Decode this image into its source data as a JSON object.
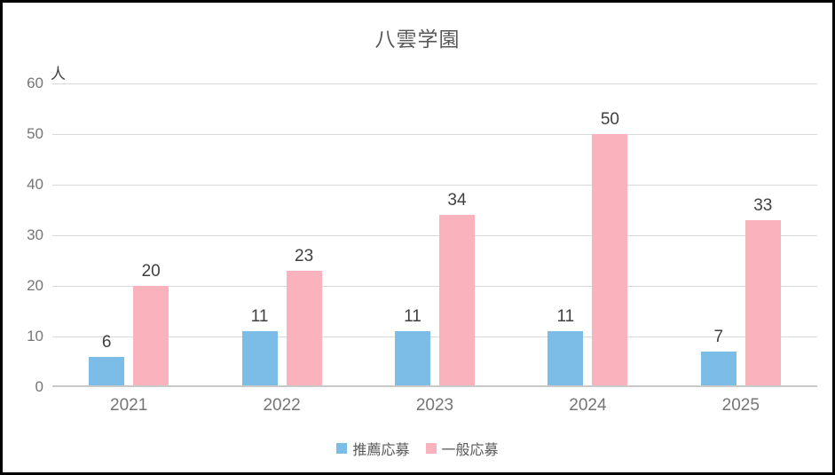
{
  "window": {
    "background": "#ffffff",
    "border_color": "#000000"
  },
  "chart_data": {
    "type": "bar",
    "title": "八雲学園",
    "unit_label": "人",
    "categories": [
      "2021",
      "2022",
      "2023",
      "2024",
      "2025"
    ],
    "series": [
      {
        "name": "推薦応募",
        "color": "#7cbde8",
        "values": [
          6,
          11,
          11,
          11,
          7
        ]
      },
      {
        "name": "一般応募",
        "color": "#fab2bd",
        "values": [
          20,
          23,
          34,
          50,
          33
        ]
      }
    ],
    "ylim": [
      0,
      60
    ],
    "y_ticks": [
      0,
      10,
      20,
      30,
      40,
      50,
      60
    ],
    "grid": "horizontal",
    "legend_position": "bottom",
    "data_labels": true
  },
  "colors": {
    "gridline": "#d9d9d9",
    "axis_line": "#c9c9c9",
    "y_tick_label": "#767676",
    "x_tick_label": "#757575",
    "data_label": "#3f3f3f",
    "title": "#595959",
    "legend_text": "#595959"
  }
}
